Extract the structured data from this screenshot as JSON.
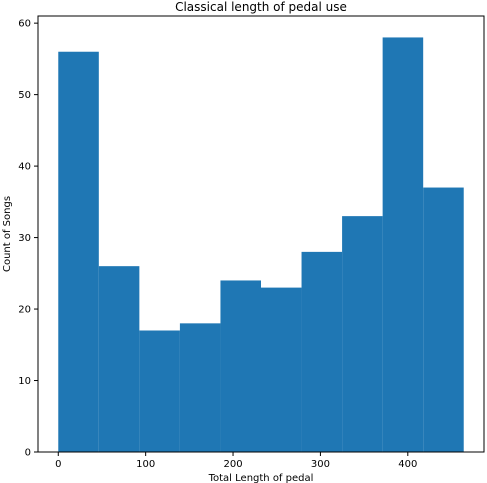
{
  "chart_data": {
    "type": "bar",
    "title": "Classical length of pedal use",
    "xlabel": "Total Length of pedal",
    "ylabel": "Count of Songs",
    "bins": [
      {
        "x0": 0,
        "x1": 46.4,
        "count": 56
      },
      {
        "x0": 46.4,
        "x1": 92.8,
        "count": 26
      },
      {
        "x0": 92.8,
        "x1": 139.2,
        "count": 17
      },
      {
        "x0": 139.2,
        "x1": 185.6,
        "count": 18
      },
      {
        "x0": 185.6,
        "x1": 232.0,
        "count": 24
      },
      {
        "x0": 232.0,
        "x1": 278.4,
        "count": 23
      },
      {
        "x0": 278.4,
        "x1": 324.8,
        "count": 28
      },
      {
        "x0": 324.8,
        "x1": 371.2,
        "count": 33
      },
      {
        "x0": 371.2,
        "x1": 417.6,
        "count": 58
      },
      {
        "x0": 417.6,
        "x1": 464.0,
        "count": 37
      }
    ],
    "xlim": [
      -23.2,
      487.2
    ],
    "ylim": [
      0,
      61
    ],
    "xticks": [
      "0",
      "100",
      "200",
      "300",
      "400"
    ],
    "yticks": [
      "0",
      "10",
      "20",
      "30",
      "40",
      "50",
      "60"
    ],
    "grid": false,
    "bar_color": "#1f77b4"
  }
}
